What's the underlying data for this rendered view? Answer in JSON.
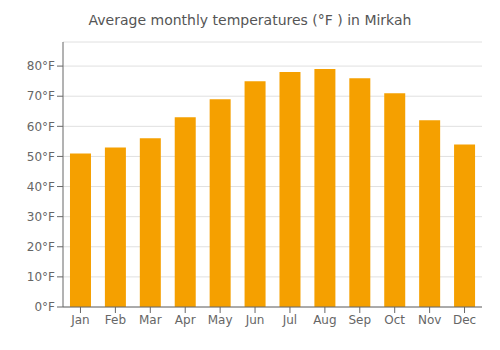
{
  "chart_data": {
    "type": "bar",
    "title": "Average monthly temperatures (°F ) in Mirkah",
    "categories": [
      "Jan",
      "Feb",
      "Mar",
      "Apr",
      "May",
      "Jun",
      "Jul",
      "Aug",
      "Sep",
      "Oct",
      "Nov",
      "Dec"
    ],
    "values": [
      51,
      53,
      56,
      63,
      69,
      75,
      78,
      79,
      76,
      71,
      62,
      54
    ],
    "color": "#F5A000",
    "ylim": [
      0,
      88
    ],
    "yticks": [
      {
        "value": 0,
        "label": "0°F"
      },
      {
        "value": 10,
        "label": "10°F"
      },
      {
        "value": 20,
        "label": "20°F"
      },
      {
        "value": 30,
        "label": "30°F"
      },
      {
        "value": 40,
        "label": "40°F"
      },
      {
        "value": 50,
        "label": "50°F"
      },
      {
        "value": 60,
        "label": "60°F"
      },
      {
        "value": 70,
        "label": "70°F"
      },
      {
        "value": 80,
        "label": "80°F"
      }
    ],
    "grid": true
  }
}
